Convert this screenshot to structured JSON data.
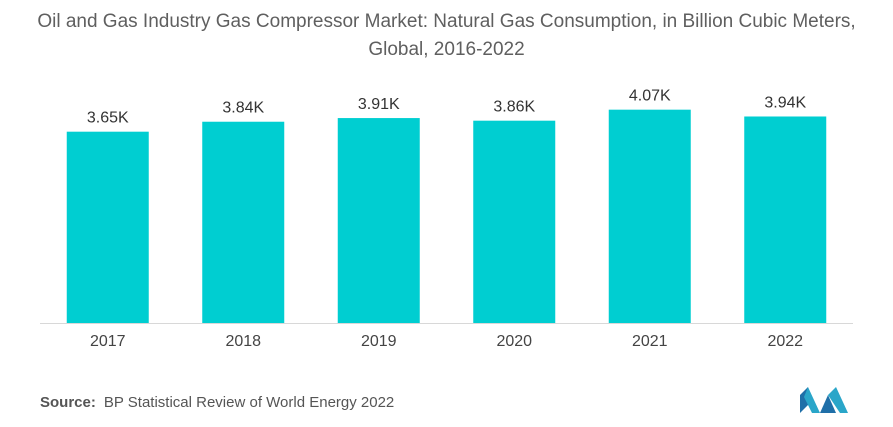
{
  "title": "Oil and Gas Industry Gas Compressor Market: Natural Gas Consumption, in Billion Cubic Meters, Global, 2016-2022",
  "colors": {
    "bar": "#00CED1",
    "text": "#555555",
    "axis": "#d8d8d8"
  },
  "source": {
    "label": "Source:",
    "text": "BP Statistical Review of World Energy 2022"
  },
  "logo": {
    "icon": "mordor-intelligence-logo"
  },
  "chart_data": {
    "type": "bar",
    "title": "Oil and Gas Industry Gas Compressor Market: Natural Gas Consumption, in Billion Cubic Meters, Global, 2016-2022",
    "categories": [
      "2017",
      "2018",
      "2019",
      "2020",
      "2021",
      "2022"
    ],
    "values": [
      3650,
      3840,
      3910,
      3860,
      4070,
      3940
    ],
    "data_labels": [
      "3.65K",
      "3.84K",
      "3.91K",
      "3.86K",
      "4.07K",
      "3.94K"
    ],
    "xlabel": "",
    "ylabel": "",
    "ylim": [
      0,
      4350
    ],
    "grid": false,
    "legend": "none"
  }
}
